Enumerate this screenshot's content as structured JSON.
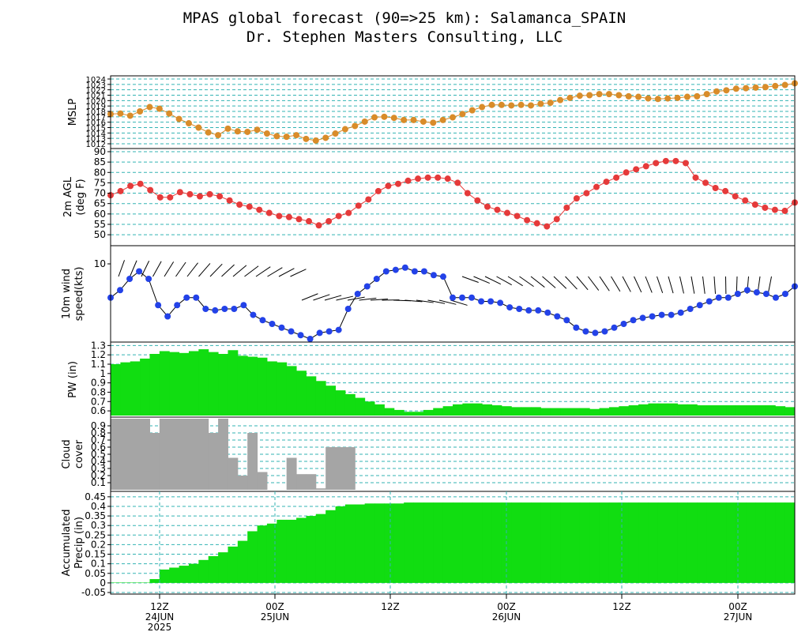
{
  "title_line1": "MPAS global forecast (90=>25 km): Salamanca_SPAIN",
  "title_line2": "Dr. Stephen Masters Consulting, LLC",
  "colors": {
    "mslp": "#d98c2a",
    "temp": "#e53a3a",
    "wind": "#2342e8",
    "pw": "#11dd11",
    "cloud": "#a5a5a5",
    "precip": "#11dd11",
    "grid": "#33b3b3"
  },
  "x_axis": {
    "ticks": [
      {
        "label": "12Z",
        "date": "24JUN",
        "year": "2025"
      },
      {
        "label": "00Z",
        "date": "25JUN",
        "year": ""
      },
      {
        "label": "12Z",
        "date": "",
        "year": ""
      },
      {
        "label": "00Z",
        "date": "26JUN",
        "year": ""
      },
      {
        "label": "12Z",
        "date": "",
        "year": ""
      },
      {
        "label": "00Z",
        "date": "27JUN",
        "year": ""
      }
    ]
  },
  "chart_data": [
    {
      "type": "line",
      "ylabel": "MSLP",
      "ylim": [
        1012,
        1024
      ],
      "yticks": [
        "1012",
        "1013",
        "1014",
        "1015",
        "1016",
        "1017",
        "1018",
        "1019",
        "1020",
        "1021",
        "1022",
        "1023",
        "1024"
      ],
      "grid": true,
      "values": [
        1017.5,
        1017.6,
        1017.2,
        1018.0,
        1018.8,
        1018.5,
        1017.6,
        1016.6,
        1015.8,
        1015.0,
        1014.1,
        1013.6,
        1014.8,
        1014.3,
        1014.2,
        1014.6,
        1013.9,
        1013.4,
        1013.3,
        1013.6,
        1012.9,
        1012.6,
        1013.1,
        1013.9,
        1014.7,
        1015.3,
        1016.1,
        1016.9,
        1017.0,
        1016.8,
        1016.4,
        1016.4,
        1016.1,
        1015.9,
        1016.4,
        1016.9,
        1017.5,
        1018.2,
        1018.8,
        1019.2,
        1019.2,
        1019.1,
        1019.2,
        1019.1,
        1019.4,
        1019.6,
        1020.1,
        1020.5,
        1020.9,
        1021.0,
        1021.2,
        1021.2,
        1021.0,
        1020.8,
        1020.7,
        1020.4,
        1020.3,
        1020.4,
        1020.5,
        1020.7,
        1020.8,
        1021.2,
        1021.7,
        1021.9,
        1022.2,
        1022.3,
        1022.4,
        1022.5,
        1022.7,
        1022.9,
        1023.2
      ]
    },
    {
      "type": "line",
      "ylabel": "2m AGL (deg F)",
      "ylim": [
        47,
        90
      ],
      "yticks": [
        "50",
        "55",
        "60",
        "65",
        "70",
        "75",
        "80",
        "85",
        "90"
      ],
      "grid": true,
      "values": [
        69,
        71,
        73.5,
        74.5,
        71.5,
        68,
        68,
        70.5,
        69.5,
        68.5,
        69.5,
        68.5,
        66.5,
        64.5,
        63.5,
        62,
        60.5,
        59,
        58.5,
        57.5,
        56.5,
        54.5,
        56.5,
        59,
        60.5,
        64,
        67,
        71,
        73.5,
        74.5,
        76,
        77,
        77.5,
        77.5,
        77,
        75,
        70,
        66.5,
        63.5,
        62,
        60.5,
        59,
        57,
        55.5,
        54,
        57.5,
        63,
        67.5,
        70,
        73,
        75.5,
        77.5,
        80,
        81.5,
        83,
        84.5,
        85.5,
        85.5,
        84.5,
        77.5,
        75,
        72.5,
        71,
        68.5,
        66.5,
        64.5,
        63,
        62,
        61.5,
        65.5
      ]
    },
    {
      "type": "line",
      "ylabel": "10m wind speed(kts)",
      "ylim": [
        0,
        12
      ],
      "yticks": [
        "10"
      ],
      "grid": false,
      "values": [
        5.5,
        6.5,
        8,
        9,
        8,
        4.5,
        3,
        4.5,
        5.5,
        5.5,
        4,
        3.8,
        4,
        4,
        4.5,
        3.2,
        2.5,
        2,
        1.5,
        1,
        0.5,
        0,
        0.8,
        1,
        1.2,
        4,
        6,
        7,
        8,
        9,
        9.2,
        9.5,
        9,
        9,
        8.5,
        8.3,
        5.5,
        5.5,
        5.5,
        5,
        5,
        4.8,
        4.2,
        4,
        3.8,
        3.8,
        3.5,
        3,
        2.5,
        1.5,
        1,
        0.8,
        1,
        1.5,
        2,
        2.5,
        2.8,
        3,
        3.2,
        3.2,
        3.5,
        4,
        4.5,
        5,
        5.5,
        5.5,
        6,
        6.5,
        6.2,
        6,
        5.5,
        6,
        7
      ]
    },
    {
      "type": "bar",
      "ylabel": "PW (in)",
      "ylim": [
        0.55,
        1.32
      ],
      "yticks": [
        "0.6",
        "0.7",
        "0.8",
        "0.9",
        "1",
        "1.1",
        "1.2",
        "1.3"
      ],
      "grid": true,
      "values": [
        1.1,
        1.12,
        1.13,
        1.16,
        1.21,
        1.24,
        1.23,
        1.22,
        1.24,
        1.26,
        1.23,
        1.21,
        1.25,
        1.19,
        1.18,
        1.17,
        1.13,
        1.12,
        1.08,
        1.03,
        0.97,
        0.92,
        0.87,
        0.82,
        0.78,
        0.74,
        0.7,
        0.67,
        0.63,
        0.61,
        0.59,
        0.59,
        0.61,
        0.63,
        0.65,
        0.67,
        0.68,
        0.68,
        0.67,
        0.66,
        0.65,
        0.64,
        0.64,
        0.64,
        0.63,
        0.63,
        0.63,
        0.63,
        0.63,
        0.62,
        0.63,
        0.64,
        0.65,
        0.66,
        0.67,
        0.68,
        0.68,
        0.68,
        0.67,
        0.67,
        0.66,
        0.66,
        0.66,
        0.66,
        0.66,
        0.66,
        0.66,
        0.66,
        0.65,
        0.64
      ]
    },
    {
      "type": "bar",
      "ylabel": "Cloud cover",
      "ylim": [
        0,
        1
      ],
      "yticks": [
        "0.1",
        "0.2",
        "0.3",
        "0.4",
        "0.5",
        "0.6",
        "0.7",
        "0.8",
        "0.9"
      ],
      "grid": true,
      "values": [
        1,
        1,
        1,
        1,
        0.8,
        1,
        1,
        1,
        1,
        1,
        0.8,
        1,
        0.45,
        0.2,
        0.8,
        0.25,
        0,
        0,
        0.45,
        0.22,
        0.22,
        0.02,
        0.6,
        0.6,
        0.6,
        0,
        0,
        0,
        0,
        0,
        0,
        0,
        0,
        0,
        0,
        0,
        0,
        0,
        0,
        0,
        0,
        0,
        0,
        0,
        0,
        0,
        0,
        0,
        0,
        0,
        0,
        0,
        0,
        0,
        0,
        0,
        0,
        0,
        0,
        0,
        0,
        0,
        0,
        0,
        0,
        0,
        0,
        0,
        0,
        0
      ]
    },
    {
      "type": "bar",
      "ylabel": "Accumulated Precip (in)",
      "ylim": [
        -0.05,
        0.47
      ],
      "yticks": [
        "-0.05",
        "0",
        "0.05",
        "0.1",
        "0.15",
        "0.2",
        "0.25",
        "0.3",
        "0.35",
        "0.4",
        "0.45"
      ],
      "grid": true,
      "values": [
        0.002,
        0.002,
        0.002,
        0.002,
        0.02,
        0.07,
        0.08,
        0.09,
        0.1,
        0.12,
        0.14,
        0.16,
        0.19,
        0.22,
        0.27,
        0.3,
        0.31,
        0.33,
        0.33,
        0.34,
        0.35,
        0.36,
        0.38,
        0.4,
        0.41,
        0.41,
        0.415,
        0.415,
        0.415,
        0.415,
        0.42,
        0.42,
        0.42,
        0.42,
        0.42,
        0.42,
        0.42,
        0.42,
        0.42,
        0.42,
        0.42,
        0.42,
        0.42,
        0.42,
        0.42,
        0.42,
        0.42,
        0.42,
        0.42,
        0.42,
        0.42,
        0.42,
        0.42,
        0.42,
        0.42,
        0.42,
        0.42,
        0.42,
        0.42,
        0.42,
        0.42,
        0.42,
        0.42,
        0.42,
        0.42,
        0.42,
        0.42,
        0.42,
        0.42,
        0.42
      ]
    }
  ]
}
